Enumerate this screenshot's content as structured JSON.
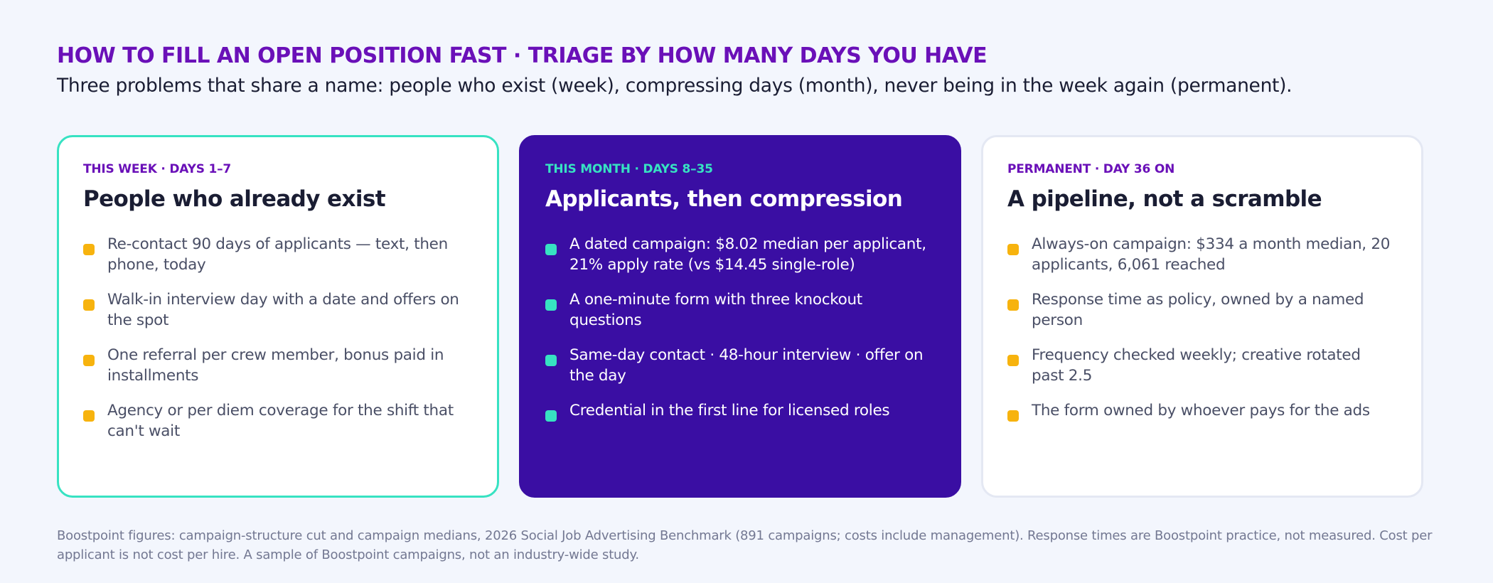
{
  "header": {
    "title": "HOW TO FILL AN OPEN POSITION FAST · TRIAGE BY HOW MANY DAYS YOU HAVE",
    "subtitle": "Three problems that share a name: people who exist (week), compressing days (month), never being in the week again (permanent)."
  },
  "cards": [
    {
      "eyebrow": "THIS WEEK · DAYS 1–7",
      "title": "People who already exist",
      "items": [
        "Re-contact 90 days of applicants — text, then phone, today",
        "Walk-in interview day with a date and offers on the spot",
        "One referral per crew member, bonus paid in installments",
        "Agency or per diem coverage for the shift that can't wait"
      ]
    },
    {
      "eyebrow": "THIS MONTH · DAYS 8–35",
      "title": "Applicants, then compression",
      "items": [
        "A dated campaign: $8.02 median per applicant, 21% apply rate (vs $14.45 single-role)",
        "A one-minute form with three knockout questions",
        "Same-day contact · 48-hour interview · offer on the day",
        "Credential in the first line for licensed roles"
      ]
    },
    {
      "eyebrow": "PERMANENT · DAY 36 ON",
      "title": "A pipeline, not a scramble",
      "items": [
        "Always-on campaign: $334 a month median, 20 applicants, 6,061 reached",
        "Response time as policy, owned by a named person",
        "Frequency checked weekly; creative rotated past 2.5",
        "The form owned by whoever pays for the ads"
      ]
    }
  ],
  "footnote": "Boostpoint figures: campaign-structure cut and campaign medians, 2026 Social Job Advertising Benchmark (891 campaigns; costs include management). Response times are Boostpoint practice, not measured. Cost per applicant is not cost per hire. A sample of Boostpoint campaigns, not an industry-wide study.",
  "colors": {
    "title": "#6a10b8",
    "accent_teal": "#37e2c2",
    "accent_purple": "#3a0ea3",
    "bullet_amber": "#f7b30e",
    "background": "#f3f6fd"
  }
}
